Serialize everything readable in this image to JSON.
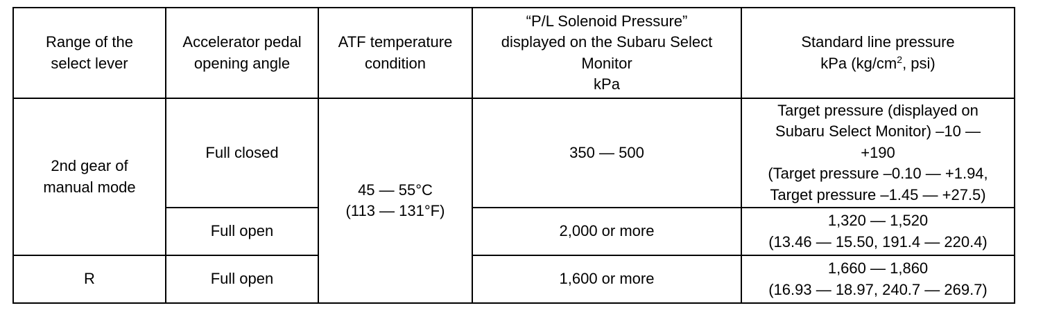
{
  "table": {
    "header": [
      [
        "Range of the",
        "select lever"
      ],
      [
        "Accelerator pedal",
        "opening angle"
      ],
      [
        "ATF temperature",
        "condition"
      ],
      [
        "“P/L Solenoid Pressure”",
        "displayed on the Subaru Select",
        "Monitor",
        "kPa"
      ],
      {
        "line1": "Standard line pressure",
        "before": "kPa (kg/cm",
        "sup": "2",
        "after": ", psi)"
      }
    ],
    "rows": [
      [
        [
          "2nd gear of",
          "manual mode"
        ],
        [
          "Full closed"
        ],
        [
          "45 — 55°C",
          "(113 — 131°F)"
        ],
        [
          "350 — 500"
        ],
        [
          "Target pressure (displayed on",
          "Subaru Select Monitor) –10 —",
          "+190",
          "(Target pressure –0.10 — +1.94,",
          "Target pressure –1.45 — +27.5)"
        ]
      ],
      [
        [
          "Full open"
        ],
        [
          "2,000 or more"
        ],
        [
          "1,320 — 1,520",
          "(13.46 — 15.50, 191.4 — 220.4)"
        ]
      ],
      [
        [
          "R"
        ],
        [
          "Full open"
        ],
        [
          "1,600 or more"
        ],
        [
          "1,660 — 1,860",
          "(16.93 — 18.97, 240.7 — 269.7)"
        ]
      ]
    ]
  }
}
